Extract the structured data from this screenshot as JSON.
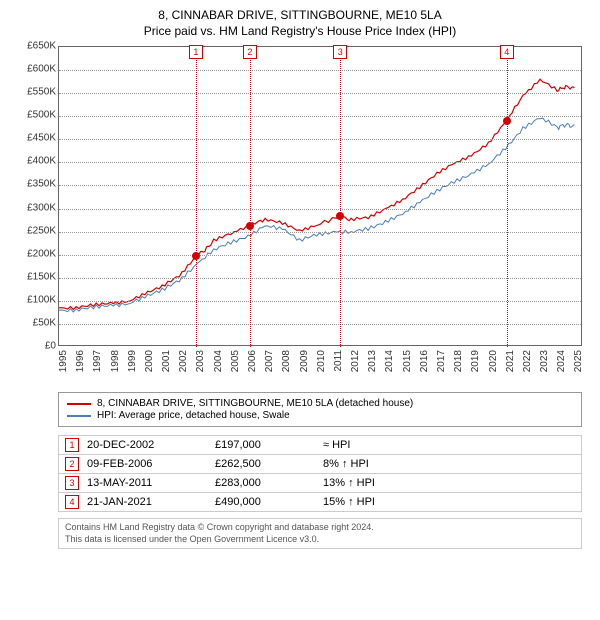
{
  "title": "8, CINNABAR DRIVE, SITTINGBOURNE, ME10 5LA",
  "subtitle": "Price paid vs. HM Land Registry's House Price Index (HPI)",
  "chart": {
    "type": "line",
    "background_color": "#ffffff",
    "grid_color": "#999999",
    "border_color": "#666666",
    "xlim": [
      1995,
      2025.5
    ],
    "ylim": [
      0,
      650000
    ],
    "ytick_step": 50000,
    "xtick_step": 1,
    "yticks": [
      "£0",
      "£50K",
      "£100K",
      "£150K",
      "£200K",
      "£250K",
      "£300K",
      "£350K",
      "£400K",
      "£450K",
      "£500K",
      "£550K",
      "£600K",
      "£650K"
    ],
    "xticks": [
      "1995",
      "1996",
      "1997",
      "1998",
      "1999",
      "2000",
      "2001",
      "2002",
      "2003",
      "2004",
      "2005",
      "2006",
      "2007",
      "2008",
      "2009",
      "2010",
      "2011",
      "2012",
      "2013",
      "2014",
      "2015",
      "2016",
      "2017",
      "2018",
      "2019",
      "2020",
      "2021",
      "2022",
      "2023",
      "2024",
      "2025"
    ],
    "label_fontsize": 10,
    "series": [
      {
        "name": "8, CINNABAR DRIVE, SITTINGBOURNE, ME10 5LA (detached house)",
        "color": "#d40000",
        "line_width": 1.2,
        "points": [
          [
            1995,
            85000
          ],
          [
            1996,
            85000
          ],
          [
            1997,
            90000
          ],
          [
            1998,
            95000
          ],
          [
            1999,
            100000
          ],
          [
            2000,
            115000
          ],
          [
            2001,
            130000
          ],
          [
            2002,
            155000
          ],
          [
            2002.97,
            197000
          ],
          [
            2003.5,
            210000
          ],
          [
            2004,
            230000
          ],
          [
            2005,
            245000
          ],
          [
            2006.11,
            262500
          ],
          [
            2007,
            278000
          ],
          [
            2008,
            268000
          ],
          [
            2009,
            250000
          ],
          [
            2010,
            265000
          ],
          [
            2011.37,
            283000
          ],
          [
            2012,
            275000
          ],
          [
            2013,
            280000
          ],
          [
            2014,
            300000
          ],
          [
            2015,
            320000
          ],
          [
            2016,
            345000
          ],
          [
            2017,
            375000
          ],
          [
            2018,
            400000
          ],
          [
            2019,
            415000
          ],
          [
            2020,
            440000
          ],
          [
            2021.06,
            490000
          ],
          [
            2022,
            545000
          ],
          [
            2023,
            580000
          ],
          [
            2024,
            555000
          ],
          [
            2024.5,
            565000
          ],
          [
            2025,
            560000
          ]
        ]
      },
      {
        "name": "HPI: Average price, detached house, Swale",
        "color": "#4a7fb5",
        "line_width": 1.0,
        "points": [
          [
            1995,
            80000
          ],
          [
            1996,
            80000
          ],
          [
            1997,
            85000
          ],
          [
            1998,
            90000
          ],
          [
            1999,
            95000
          ],
          [
            2000,
            108000
          ],
          [
            2001,
            122000
          ],
          [
            2002,
            145000
          ],
          [
            2003,
            180000
          ],
          [
            2004,
            210000
          ],
          [
            2005,
            225000
          ],
          [
            2006,
            240000
          ],
          [
            2007,
            265000
          ],
          [
            2008,
            255000
          ],
          [
            2009,
            230000
          ],
          [
            2010,
            245000
          ],
          [
            2011,
            250000
          ],
          [
            2012,
            248000
          ],
          [
            2013,
            255000
          ],
          [
            2014,
            272000
          ],
          [
            2015,
            290000
          ],
          [
            2016,
            312000
          ],
          [
            2017,
            338000
          ],
          [
            2018,
            360000
          ],
          [
            2019,
            375000
          ],
          [
            2020,
            395000
          ],
          [
            2021,
            430000
          ],
          [
            2022,
            475000
          ],
          [
            2023,
            498000
          ],
          [
            2024,
            475000
          ],
          [
            2024.5,
            482000
          ],
          [
            2025,
            478000
          ]
        ]
      }
    ],
    "transaction_markers": [
      {
        "num": "1",
        "year": 2002.97,
        "price": 197000,
        "color": "#d40000"
      },
      {
        "num": "2",
        "year": 2006.11,
        "price": 262500,
        "color": "#d40000"
      },
      {
        "num": "3",
        "year": 2011.37,
        "price": 283000,
        "color": "#d40000"
      },
      {
        "num": "4",
        "year": 2021.06,
        "price": 490000,
        "color": "#d40000"
      }
    ]
  },
  "legend": {
    "items": [
      {
        "label": "8, CINNABAR DRIVE, SITTINGBOURNE, ME10 5LA (detached house)",
        "color": "#d40000"
      },
      {
        "label": "HPI: Average price, detached house, Swale",
        "color": "#4a7fb5"
      }
    ]
  },
  "events": [
    {
      "num": "1",
      "date": "20-DEC-2002",
      "price": "£197,000",
      "diff": "≈ HPI",
      "color": "#d40000"
    },
    {
      "num": "2",
      "date": "09-FEB-2006",
      "price": "£262,500",
      "diff": "8% ↑ HPI",
      "color": "#d40000"
    },
    {
      "num": "3",
      "date": "13-MAY-2011",
      "price": "£283,000",
      "diff": "13% ↑ HPI",
      "color": "#d40000"
    },
    {
      "num": "4",
      "date": "21-JAN-2021",
      "price": "£490,000",
      "diff": "15% ↑ HPI",
      "color": "#d40000"
    }
  ],
  "footer": {
    "line1": "Contains HM Land Registry data © Crown copyright and database right 2024.",
    "line2": "This data is licensed under the Open Government Licence v3.0."
  }
}
